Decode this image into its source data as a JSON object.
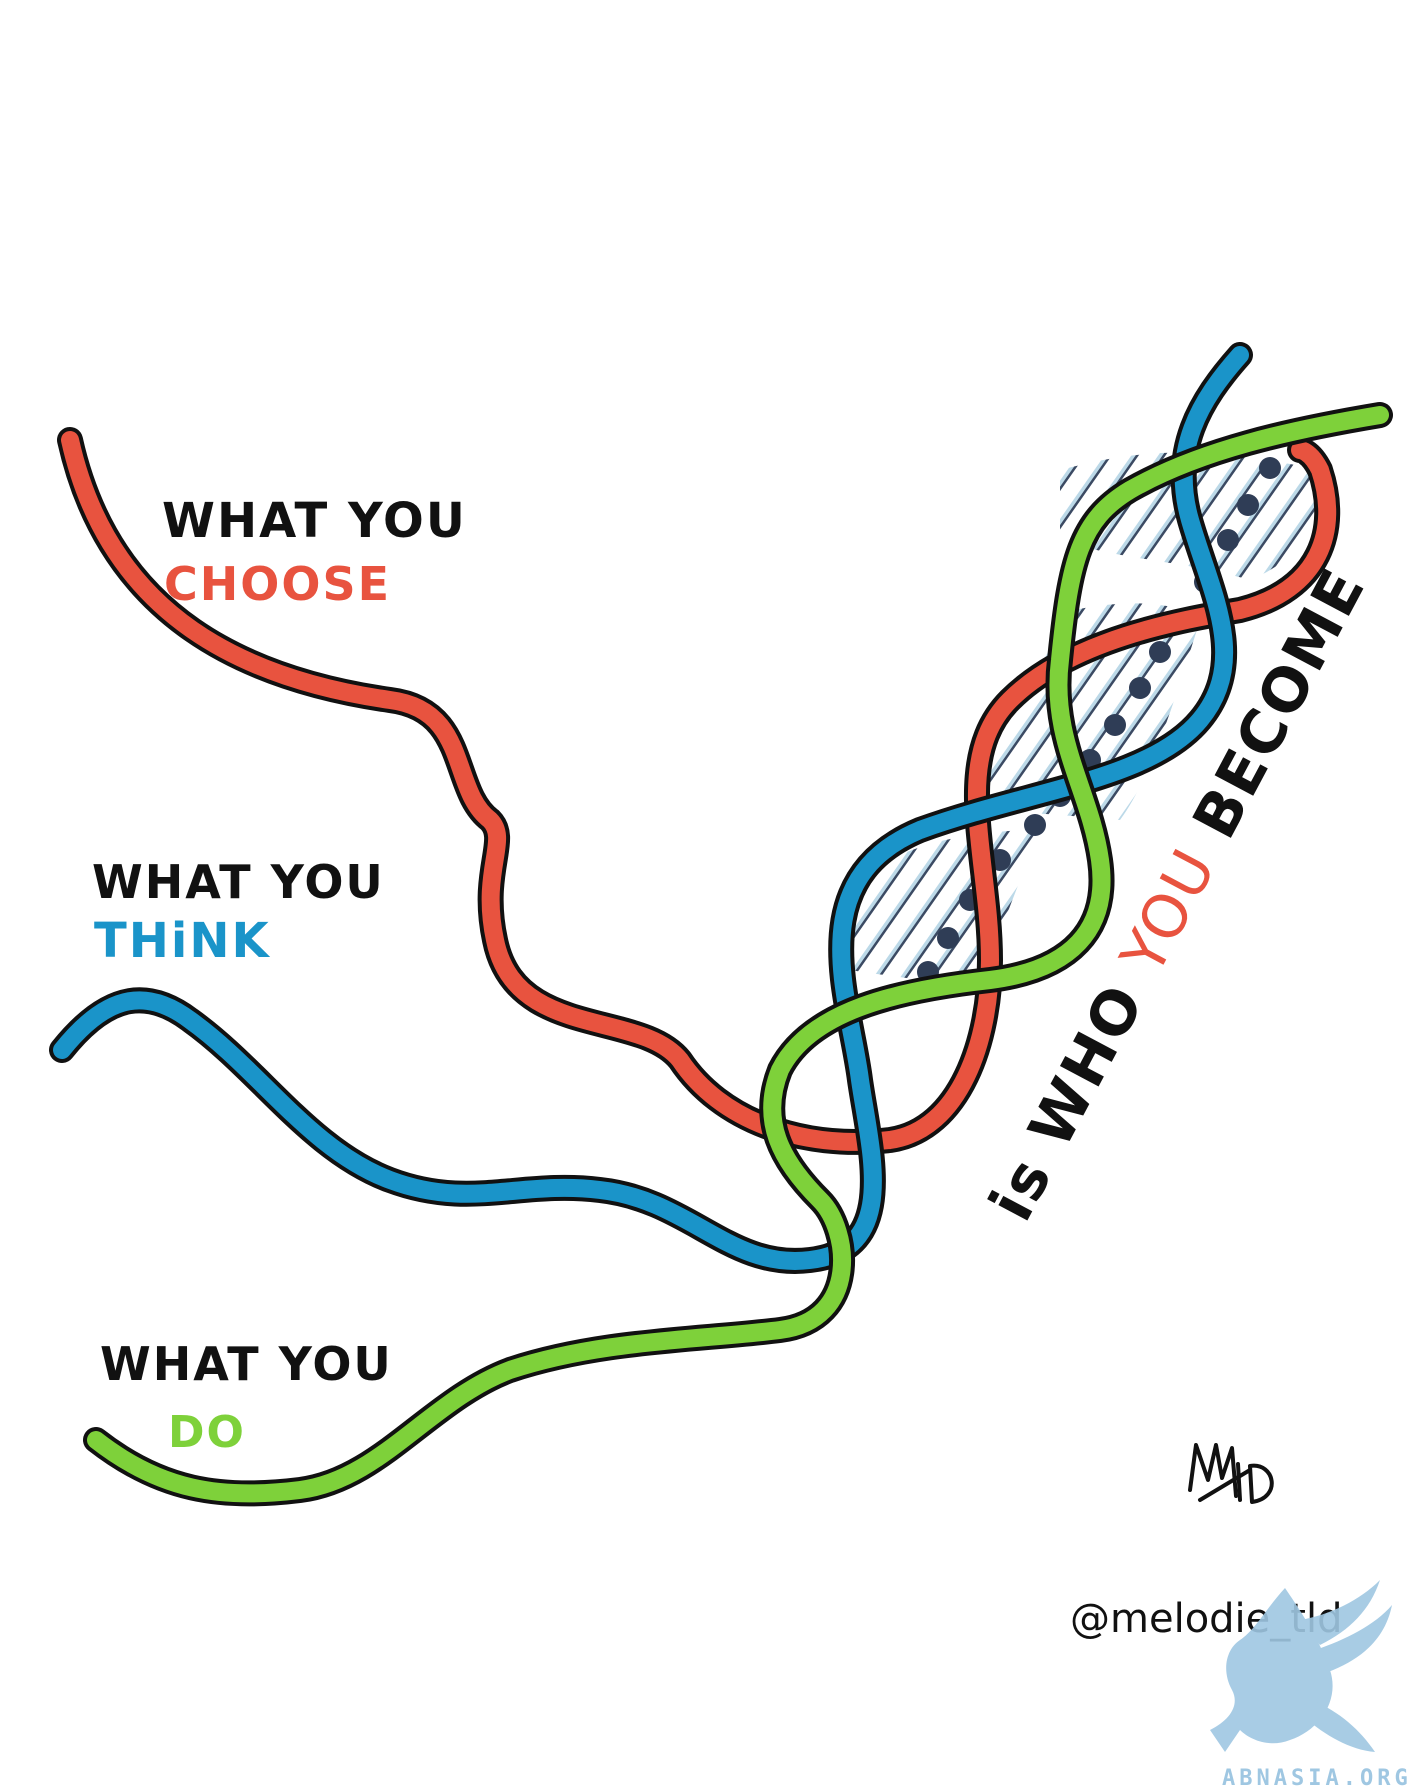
{
  "colors": {
    "red": "#e8533f",
    "blue": "#1a94c9",
    "green": "#7ed13a",
    "ink": "#111111",
    "rung": "#b9d7e6",
    "node": "#2f3d56",
    "watermark": "#9fc7e2"
  },
  "labels": {
    "choose": {
      "line1": "WHAT YOU",
      "line2": "CHOOSE"
    },
    "think": {
      "line1": "WHAT YOU",
      "line2": "THiNK"
    },
    "do": {
      "line1": "WHAT YOU",
      "line2": "DO"
    }
  },
  "tagline": {
    "part1": "is WHO ",
    "part2": "YOU",
    "part3": " BECOME"
  },
  "signature": "MTLD",
  "handle": "@melodie_tld",
  "watermark": "ABNASIA.ORG",
  "icons": {
    "signature": "signature-mark-icon",
    "watermark_logo": "dragon-logo-icon"
  }
}
